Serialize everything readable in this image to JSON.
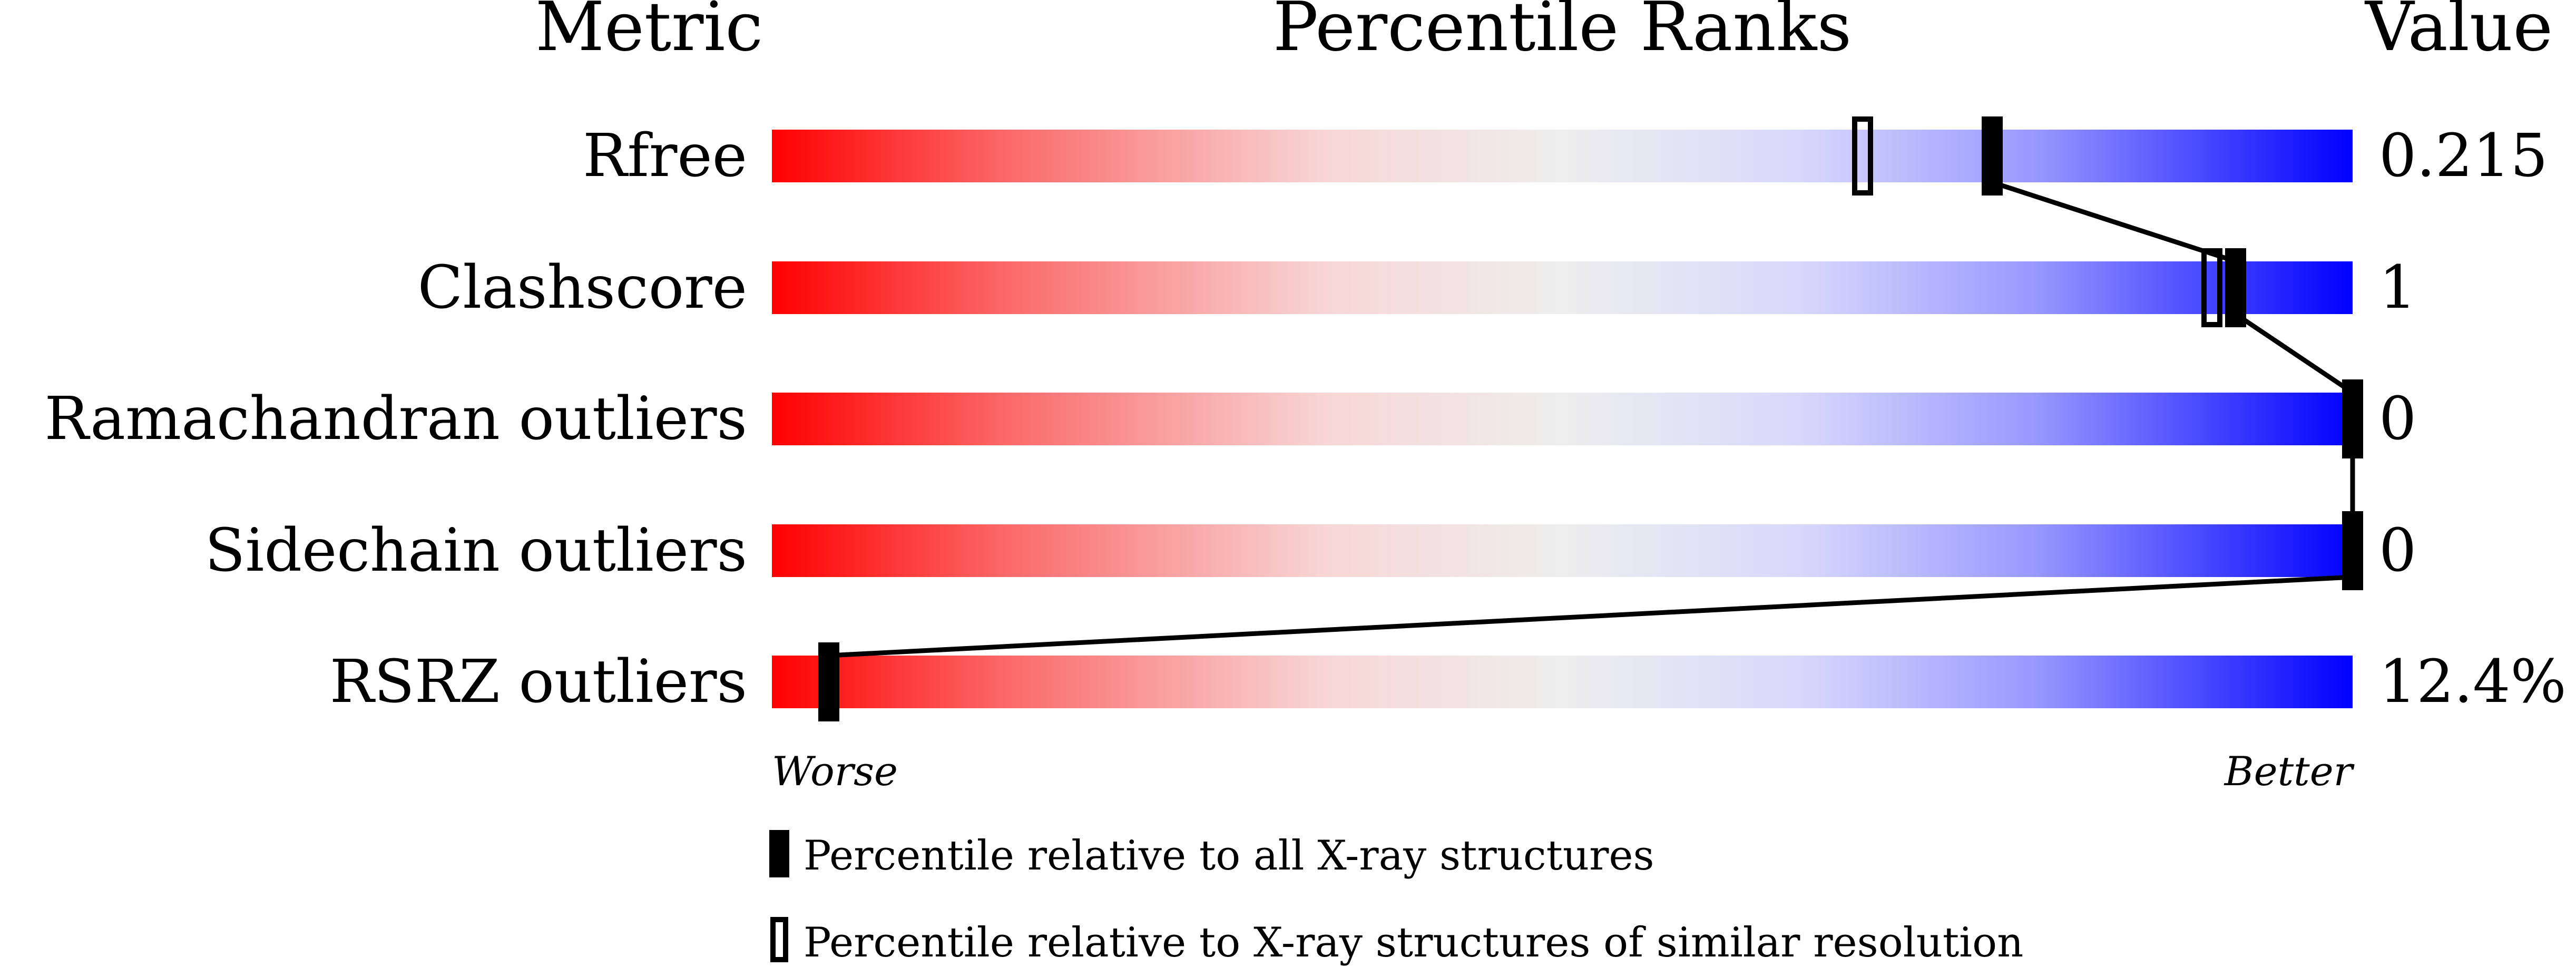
{
  "chart_data": {
    "type": "bar",
    "headers": {
      "metric": "Metric",
      "ranks": "Percentile Ranks",
      "value": "Value"
    },
    "axis": {
      "left": "Worse",
      "right": "Better",
      "range": [
        0,
        100
      ]
    },
    "gradient_colors": [
      "#ff0000",
      "#eeeeee",
      "#0000ff"
    ],
    "rows": [
      {
        "metric": "Rfree",
        "value": "0.215",
        "percentile_all": 77.2,
        "percentile_similar": 69.0
      },
      {
        "metric": "Clashscore",
        "value": "1",
        "percentile_all": 92.6,
        "percentile_similar": 91.1
      },
      {
        "metric": "Ramachandran outliers",
        "value": "0",
        "percentile_all": 100,
        "percentile_similar": null
      },
      {
        "metric": "Sidechain outliers",
        "value": "0",
        "percentile_all": 100,
        "percentile_similar": null
      },
      {
        "metric": "RSRZ outliers",
        "value": "12.4%",
        "percentile_all": 3.6,
        "percentile_similar": null
      }
    ],
    "legend": [
      {
        "marker": "filled",
        "label": "Percentile relative to all X-ray structures"
      },
      {
        "marker": "open",
        "label": "Percentile relative to X-ray structures of similar resolution"
      }
    ]
  }
}
